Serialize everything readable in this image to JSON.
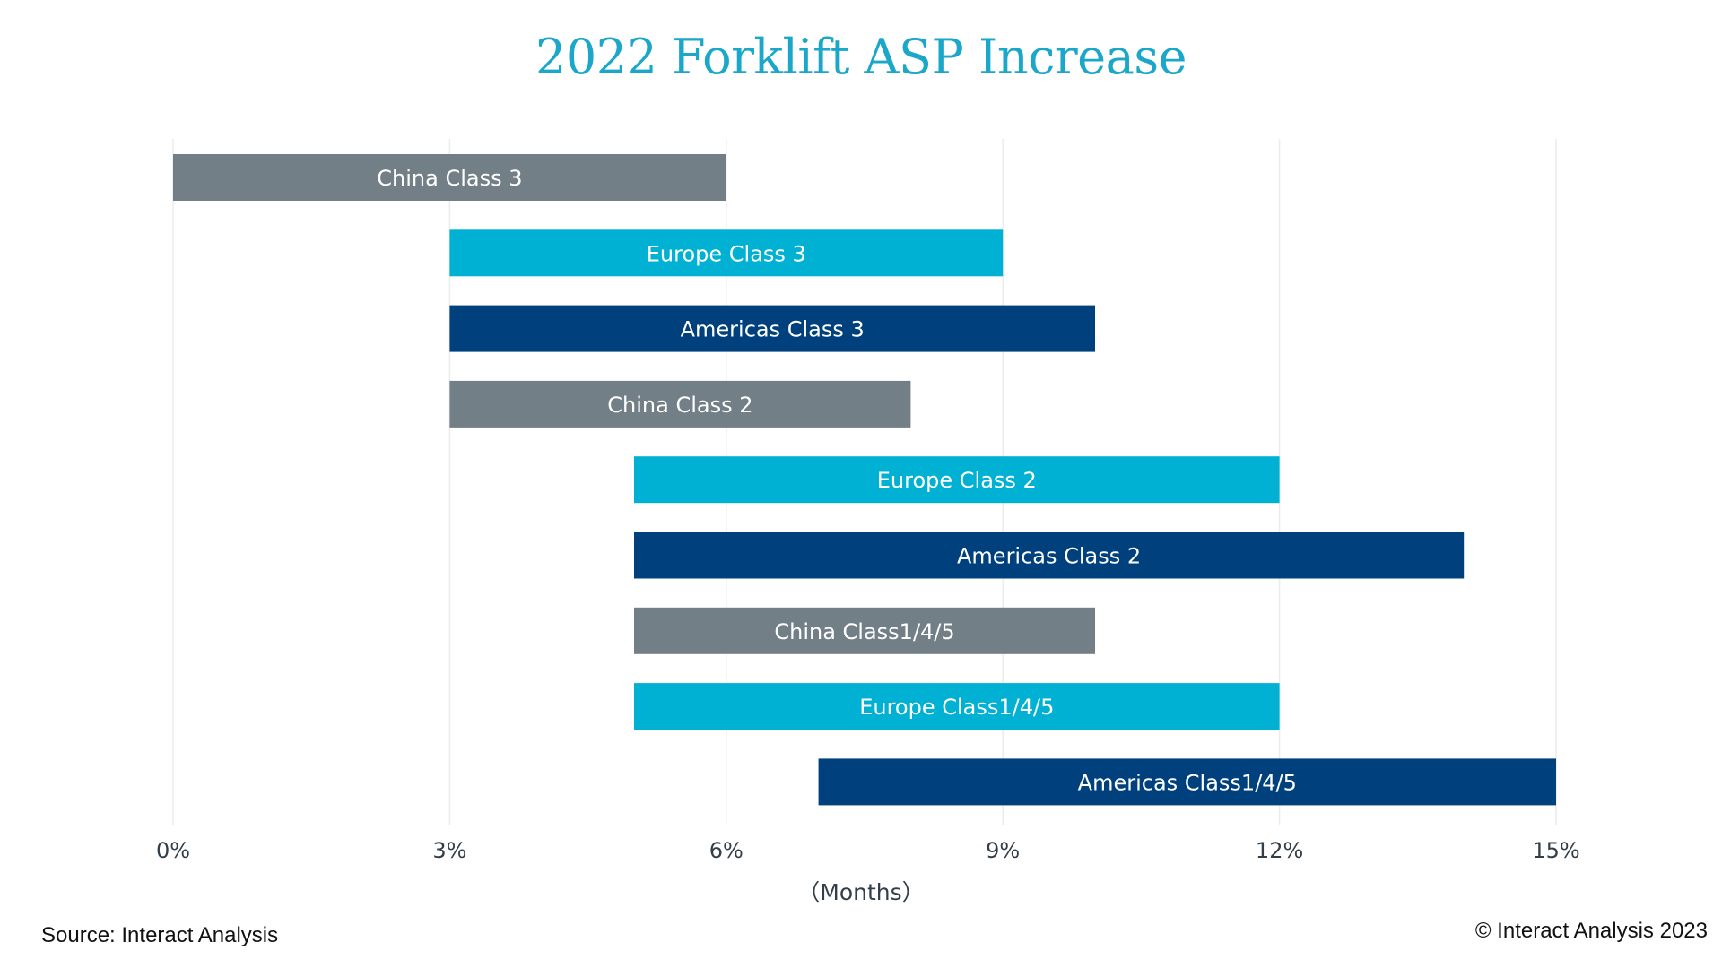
{
  "chart_data": {
    "type": "bar",
    "orientation": "horizontal-range",
    "title": "2022 Forklift ASP Increase",
    "xlabel": "（Months）",
    "xlim": [
      0,
      15
    ],
    "xticks": [
      {
        "value": 0,
        "label": "0%"
      },
      {
        "value": 3,
        "label": "3%"
      },
      {
        "value": 6,
        "label": "6%"
      },
      {
        "value": 9,
        "label": "9%"
      },
      {
        "value": 12,
        "label": "12%"
      },
      {
        "value": 15,
        "label": "15%"
      }
    ],
    "grid": true,
    "legend": "none",
    "bars": [
      {
        "label": "China Class 3",
        "start": 0,
        "end": 6,
        "color": "#727f87"
      },
      {
        "label": "Europe Class 3",
        "start": 3,
        "end": 9,
        "color": "#00b1d4"
      },
      {
        "label": "Americas Class 3",
        "start": 3,
        "end": 10,
        "color": "#00407d"
      },
      {
        "label": "China Class 2",
        "start": 3,
        "end": 8,
        "color": "#727f87"
      },
      {
        "label": "Europe Class 2",
        "start": 5,
        "end": 12,
        "color": "#00b1d4"
      },
      {
        "label": "Americas Class 2",
        "start": 5,
        "end": 14,
        "color": "#00407d"
      },
      {
        "label": "China Class1/4/5",
        "start": 5,
        "end": 10,
        "color": "#727f87"
      },
      {
        "label": "Europe Class1/4/5",
        "start": 5,
        "end": 12,
        "color": "#00b1d4"
      },
      {
        "label": "Americas Class1/4/5",
        "start": 7,
        "end": 15,
        "color": "#00407d"
      }
    ]
  },
  "footer": {
    "source": "Source: Interact Analysis",
    "copyright": "© Interact Analysis 2023"
  },
  "colors": {
    "title": "#1aa7c9",
    "china": "#727f87",
    "europe": "#00b1d4",
    "americas": "#00407d"
  }
}
